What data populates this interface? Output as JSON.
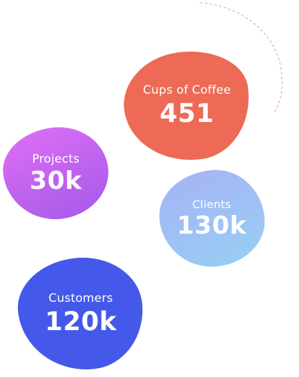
{
  "stats": [
    {
      "id": "coffee",
      "label": "Cups of Coffee",
      "value": "451",
      "color": "#ec6a56"
    },
    {
      "id": "projects",
      "label": "Projects",
      "value": "30k",
      "color": "#c066ef"
    },
    {
      "id": "clients",
      "label": "Clients",
      "value": "130k",
      "color": "#9fc0f5"
    },
    {
      "id": "customers",
      "label": "Customers",
      "value": "120k",
      "color": "#4459ea"
    }
  ],
  "decoration": {
    "arc_color": "#f2a99c",
    "arc_icon": "dashed-arc-icon"
  }
}
